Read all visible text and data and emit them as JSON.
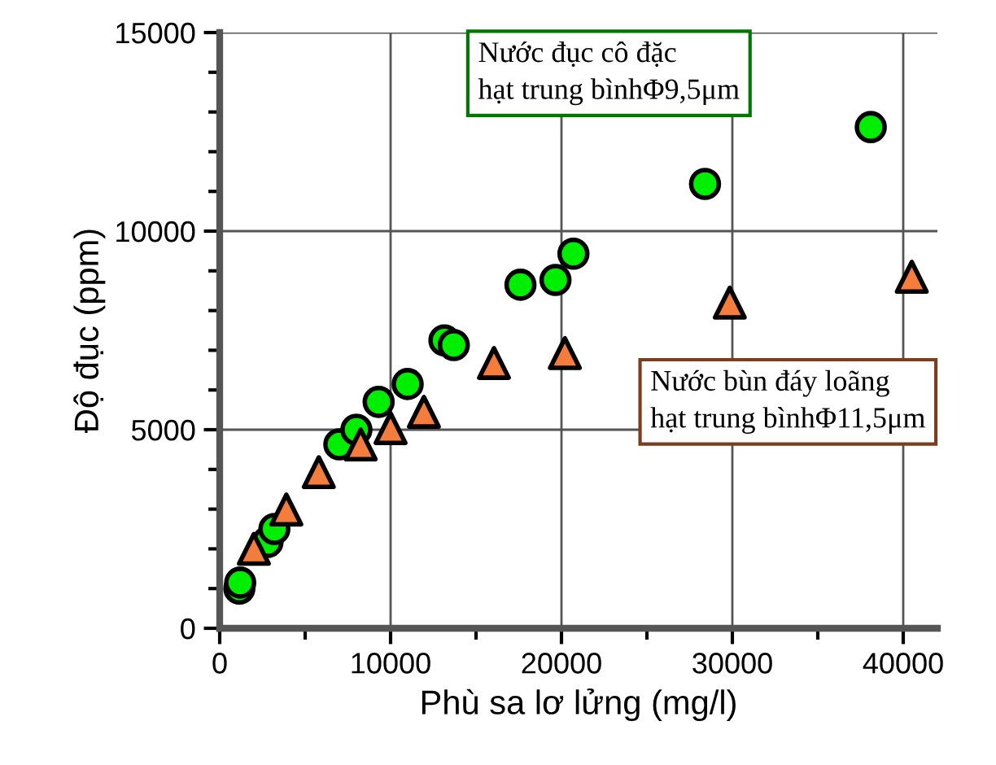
{
  "chart_data": {
    "type": "scatter",
    "xlabel": "Phù sa lơ lửng (mg/l)",
    "ylabel": "Độ đục (ppm)",
    "xlim": [
      0,
      42000
    ],
    "ylim": [
      0,
      15000
    ],
    "xticks": [
      0,
      10000,
      20000,
      30000,
      40000
    ],
    "yticks": [
      0,
      5000,
      10000,
      15000
    ],
    "grid": true,
    "legend": false,
    "series": [
      {
        "name": "Nước đục cô đặc\nhạt trung bìnhΦ9,5μm",
        "color": "#00ee00",
        "marker": "circle",
        "x": [
          1150,
          1200,
          2800,
          3200,
          7000,
          8000,
          9300,
          11000,
          13150,
          13700,
          17600,
          19650,
          20700,
          28400,
          38100
        ],
        "values": [
          1000,
          1150,
          2170,
          2500,
          4630,
          5000,
          5700,
          6150,
          7250,
          7130,
          8650,
          8770,
          9430,
          11190,
          12620
        ]
      },
      {
        "name": "Nước bùn đáy loãng\nhạt trung bìnhΦ11,5μm",
        "color": "#f47c3c",
        "marker": "triangle",
        "x": [
          2000,
          3900,
          5800,
          8250,
          10000,
          11950,
          16050,
          20200,
          29850,
          40500
        ],
        "values": [
          2000,
          2990,
          3930,
          4630,
          5040,
          5450,
          6680,
          6930,
          8200,
          8850
        ]
      }
    ]
  }
}
